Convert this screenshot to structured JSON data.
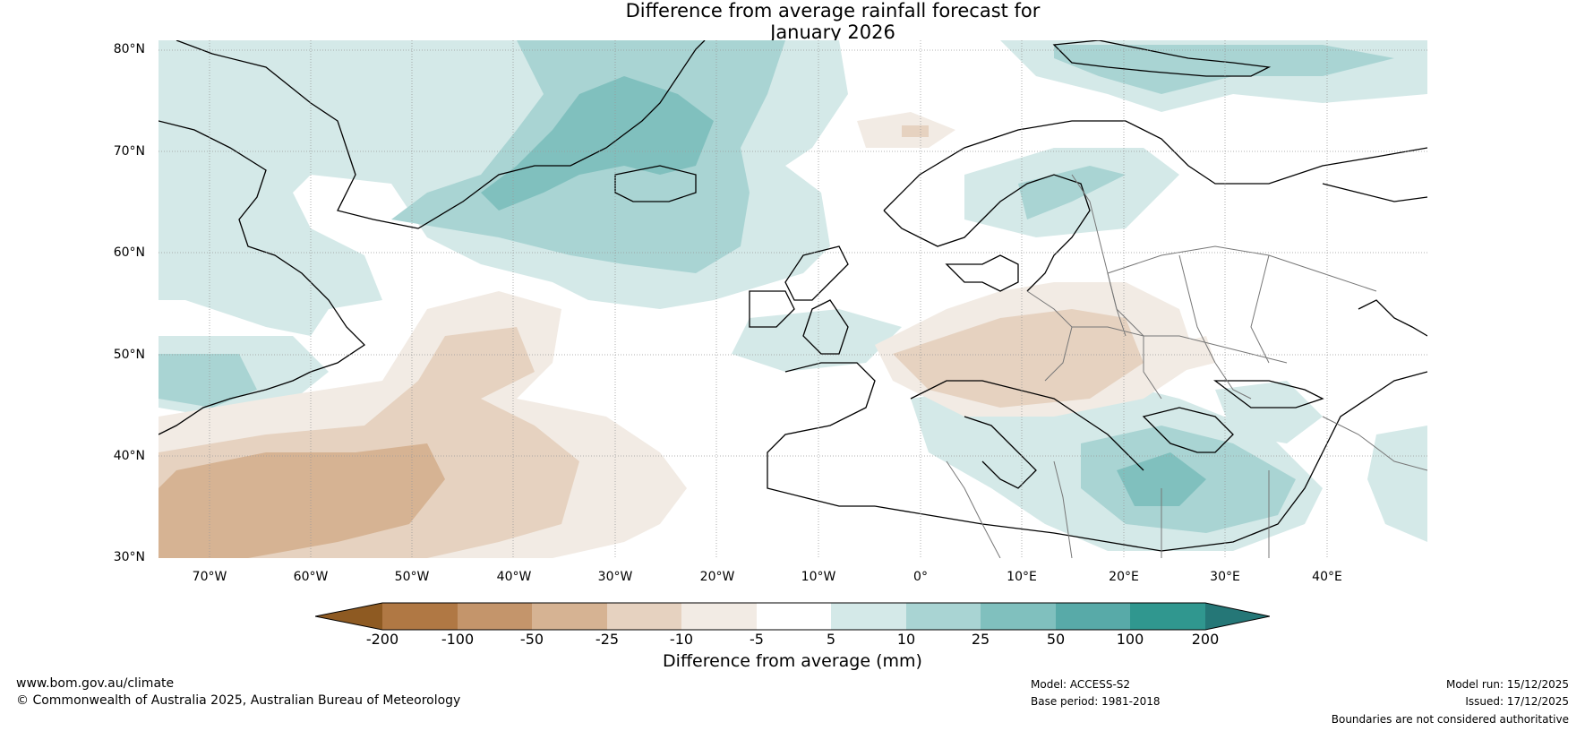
{
  "title_line1": "Difference from average rainfall forecast for",
  "title_line2": "January 2026",
  "latitude_labels": [
    "80°N",
    "70°N",
    "60°N",
    "50°N",
    "40°N",
    "30°N"
  ],
  "longitude_labels": [
    "70°W",
    "60°W",
    "50°W",
    "40°W",
    "30°W",
    "20°W",
    "10°W",
    "0°",
    "10°E",
    "20°E",
    "30°E",
    "40°E"
  ],
  "map_extent": {
    "lon_min": -75,
    "lon_max": 50,
    "lat_min": 30,
    "lat_max": 81
  },
  "colorbar": {
    "ticks": [
      "-200",
      "-100",
      "-50",
      "-25",
      "-10",
      "-5",
      "5",
      "10",
      "25",
      "50",
      "100",
      "200"
    ],
    "colors": [
      "#8e5a22",
      "#b07844",
      "#c4956b",
      "#d6b393",
      "#e6d2c0",
      "#f2ebe4",
      "#ffffff",
      "#d4e9e8",
      "#a9d4d3",
      "#80c0be",
      "#58aaa8",
      "#30978f",
      "#257777"
    ],
    "label": "Difference from average (mm)"
  },
  "footer": {
    "url": "www.bom.gov.au/climate",
    "copyright": "© Commonwealth of Australia 2025, Australian Bureau of Meteorology",
    "model": "Model: ACCESS-S2",
    "base_period": "Base period: 1981-2018",
    "model_run": "Model run: 15/12/2025",
    "issued": "Issued: 17/12/2025",
    "disclaimer": "Boundaries are not considered authoritative"
  }
}
